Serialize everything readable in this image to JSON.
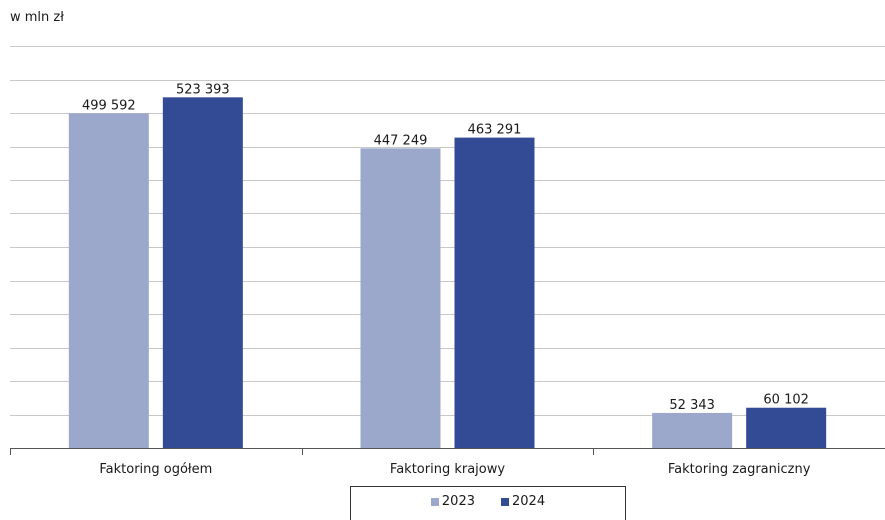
{
  "unit_label": "w mln zł",
  "colors": {
    "s2023": "#9ba8cc",
    "s2024": "#334a94",
    "grid": "#c8c8c8",
    "axis": "#555555"
  },
  "chart_data": {
    "type": "bar",
    "categories": [
      "Faktoring ogółem",
      "Faktoring krajowy",
      "Faktoring zagraniczny"
    ],
    "series": [
      {
        "name": "2023",
        "values": [
          499592,
          447249,
          52343
        ],
        "labels": [
          "499 592",
          "447 249",
          "52 343"
        ]
      },
      {
        "name": "2024",
        "values": [
          523393,
          463291,
          60102
        ],
        "labels": [
          "523 393",
          "463 291",
          "60 102"
        ]
      }
    ],
    "ylabel": "w mln zł",
    "ylim": [
      0,
      600000
    ],
    "y_step": 50000,
    "grid": true,
    "legend": "bottom"
  }
}
